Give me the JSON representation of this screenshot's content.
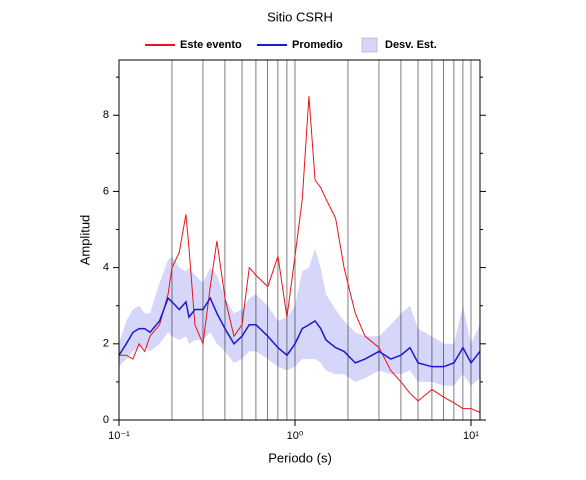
{
  "chart_data": {
    "type": "line",
    "title": "Sitio CSRH",
    "x_label": "Periodo (s)",
    "y_label": "Amplitud",
    "x_scale": "log",
    "xlim": [
      0.1,
      11.25
    ],
    "ylim": [
      0,
      9.45
    ],
    "xticks": [
      {
        "value": 0.1,
        "label": "10⁻¹"
      },
      {
        "value": 1,
        "label": "10⁰"
      },
      {
        "value": 10,
        "label": "10¹"
      }
    ],
    "xgrid": [
      0.1,
      0.2,
      0.3,
      0.4,
      0.5,
      0.6,
      0.7,
      0.8,
      0.9,
      1,
      2,
      3,
      4,
      5,
      6,
      7,
      8,
      9,
      10
    ],
    "yticks": [
      0,
      2,
      4,
      6,
      8
    ],
    "yminor": [
      1,
      3,
      5,
      7,
      9
    ],
    "x": [
      0.1,
      0.11,
      0.12,
      0.13,
      0.14,
      0.15,
      0.17,
      0.19,
      0.2,
      0.22,
      0.24,
      0.25,
      0.27,
      0.3,
      0.33,
      0.36,
      0.4,
      0.45,
      0.5,
      0.55,
      0.6,
      0.7,
      0.8,
      0.9,
      1.0,
      1.1,
      1.2,
      1.3,
      1.4,
      1.5,
      1.7,
      1.9,
      2.2,
      2.5,
      3,
      3.5,
      4,
      4.5,
      5,
      6,
      7,
      8,
      9,
      10,
      11.25
    ],
    "band": {
      "name": "Desv. Est.",
      "color": "#d6d6fa",
      "lower": [
        1.4,
        1.6,
        1.8,
        1.9,
        1.9,
        1.8,
        2.0,
        2.3,
        2.2,
        2.1,
        2.2,
        2.0,
        2.1,
        2.1,
        2.3,
        2.0,
        1.8,
        1.5,
        1.6,
        1.8,
        1.8,
        1.6,
        1.4,
        1.3,
        1.4,
        1.6,
        1.6,
        1.6,
        1.5,
        1.3,
        1.2,
        1.2,
        1.0,
        1.1,
        1.3,
        1.2,
        1.2,
        1.3,
        1.0,
        1.0,
        0.9,
        0.9,
        1.2,
        0.9,
        1.1
      ],
      "upper": [
        2.0,
        2.6,
        2.9,
        3.0,
        2.8,
        2.8,
        3.6,
        4.2,
        4.3,
        4.0,
        3.9,
        4.0,
        3.8,
        3.6,
        4.0,
        3.8,
        3.2,
        2.8,
        2.9,
        3.2,
        3.3,
        3.0,
        2.6,
        2.7,
        3.0,
        3.9,
        4.0,
        4.5,
        4.0,
        3.3,
        2.9,
        2.6,
        2.3,
        2.2,
        2.2,
        2.5,
        2.8,
        3.0,
        2.4,
        2.2,
        2.0,
        2.0,
        3.0,
        2.0,
        2.5
      ]
    },
    "series": [
      {
        "name": "Este evento",
        "color": "#e8141a",
        "values": [
          1.7,
          1.7,
          1.6,
          2.0,
          1.8,
          2.2,
          2.5,
          3.3,
          4.0,
          4.4,
          5.4,
          4.5,
          2.5,
          2.0,
          3.5,
          4.7,
          3.2,
          2.2,
          2.5,
          4.0,
          3.8,
          3.5,
          4.3,
          2.7,
          4.3,
          5.8,
          8.5,
          6.3,
          6.1,
          5.8,
          5.3,
          4.0,
          2.8,
          2.2,
          1.9,
          1.3,
          1.0,
          0.7,
          0.5,
          0.8,
          0.6,
          0.45,
          0.3,
          0.3,
          0.2
        ]
      },
      {
        "name": "Promedio",
        "color": "#1a1ad0",
        "values": [
          1.7,
          2.0,
          2.3,
          2.4,
          2.4,
          2.3,
          2.6,
          3.2,
          3.1,
          2.9,
          3.1,
          2.7,
          2.9,
          2.9,
          3.2,
          2.8,
          2.4,
          2.0,
          2.2,
          2.5,
          2.5,
          2.2,
          1.9,
          1.7,
          2.0,
          2.4,
          2.5,
          2.6,
          2.4,
          2.1,
          1.9,
          1.8,
          1.5,
          1.6,
          1.8,
          1.6,
          1.7,
          1.9,
          1.5,
          1.4,
          1.4,
          1.5,
          1.9,
          1.5,
          1.8
        ]
      }
    ]
  }
}
